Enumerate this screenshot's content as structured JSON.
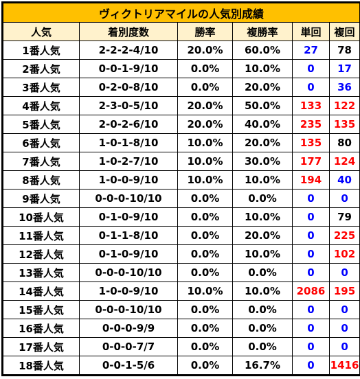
{
  "title": "ヴィクトリアマイルの人気別成績",
  "headers": [
    "人気",
    "着別度数",
    "勝率",
    "複勝率",
    "単回",
    "複回"
  ],
  "colors": {
    "title_bg": "#ffc000",
    "header_bg": "#fff2cc",
    "blue": "#0000ff",
    "red": "#ff0000",
    "black": "#000000"
  },
  "rows": [
    {
      "pop": "1番人気",
      "record": "2-2-2-4/10",
      "win": "20.0%",
      "place": "60.0%",
      "tan": "27",
      "tan_c": "blue",
      "fuku": "78",
      "fuku_c": "black"
    },
    {
      "pop": "2番人気",
      "record": "0-0-1-9/10",
      "win": "0.0%",
      "place": "10.0%",
      "tan": "0",
      "tan_c": "blue",
      "fuku": "17",
      "fuku_c": "blue"
    },
    {
      "pop": "3番人気",
      "record": "0-2-0-8/10",
      "win": "0.0%",
      "place": "20.0%",
      "tan": "0",
      "tan_c": "blue",
      "fuku": "36",
      "fuku_c": "blue"
    },
    {
      "pop": "4番人気",
      "record": "2-3-0-5/10",
      "win": "20.0%",
      "place": "50.0%",
      "tan": "133",
      "tan_c": "red",
      "fuku": "122",
      "fuku_c": "red"
    },
    {
      "pop": "5番人気",
      "record": "2-0-2-6/10",
      "win": "20.0%",
      "place": "40.0%",
      "tan": "235",
      "tan_c": "red",
      "fuku": "135",
      "fuku_c": "red"
    },
    {
      "pop": "6番人気",
      "record": "1-0-1-8/10",
      "win": "10.0%",
      "place": "20.0%",
      "tan": "135",
      "tan_c": "red",
      "fuku": "80",
      "fuku_c": "black"
    },
    {
      "pop": "7番人気",
      "record": "1-0-2-7/10",
      "win": "10.0%",
      "place": "30.0%",
      "tan": "177",
      "tan_c": "red",
      "fuku": "124",
      "fuku_c": "red"
    },
    {
      "pop": "8番人気",
      "record": "1-0-0-9/10",
      "win": "10.0%",
      "place": "10.0%",
      "tan": "194",
      "tan_c": "red",
      "fuku": "40",
      "fuku_c": "blue"
    },
    {
      "pop": "9番人気",
      "record": "0-0-0-10/10",
      "win": "0.0%",
      "place": "0.0%",
      "tan": "0",
      "tan_c": "blue",
      "fuku": "0",
      "fuku_c": "blue"
    },
    {
      "pop": "10番人気",
      "record": "0-1-0-9/10",
      "win": "0.0%",
      "place": "10.0%",
      "tan": "0",
      "tan_c": "blue",
      "fuku": "79",
      "fuku_c": "black"
    },
    {
      "pop": "11番人気",
      "record": "0-1-1-8/10",
      "win": "0.0%",
      "place": "20.0%",
      "tan": "0",
      "tan_c": "blue",
      "fuku": "225",
      "fuku_c": "red"
    },
    {
      "pop": "12番人気",
      "record": "0-1-0-9/10",
      "win": "0.0%",
      "place": "10.0%",
      "tan": "0",
      "tan_c": "blue",
      "fuku": "102",
      "fuku_c": "red"
    },
    {
      "pop": "13番人気",
      "record": "0-0-0-10/10",
      "win": "0.0%",
      "place": "0.0%",
      "tan": "0",
      "tan_c": "blue",
      "fuku": "0",
      "fuku_c": "blue"
    },
    {
      "pop": "14番人気",
      "record": "1-0-0-9/10",
      "win": "10.0%",
      "place": "10.0%",
      "tan": "2086",
      "tan_c": "red",
      "fuku": "195",
      "fuku_c": "red"
    },
    {
      "pop": "15番人気",
      "record": "0-0-0-10/10",
      "win": "0.0%",
      "place": "0.0%",
      "tan": "0",
      "tan_c": "blue",
      "fuku": "0",
      "fuku_c": "blue"
    },
    {
      "pop": "16番人気",
      "record": "0-0-0-9/9",
      "win": "0.0%",
      "place": "0.0%",
      "tan": "0",
      "tan_c": "blue",
      "fuku": "0",
      "fuku_c": "blue"
    },
    {
      "pop": "17番人気",
      "record": "0-0-0-7/7",
      "win": "0.0%",
      "place": "0.0%",
      "tan": "0",
      "tan_c": "blue",
      "fuku": "0",
      "fuku_c": "blue"
    },
    {
      "pop": "18番人気",
      "record": "0-0-1-5/6",
      "win": "0.0%",
      "place": "16.7%",
      "tan": "0",
      "tan_c": "blue",
      "fuku": "1416",
      "fuku_c": "red"
    }
  ]
}
